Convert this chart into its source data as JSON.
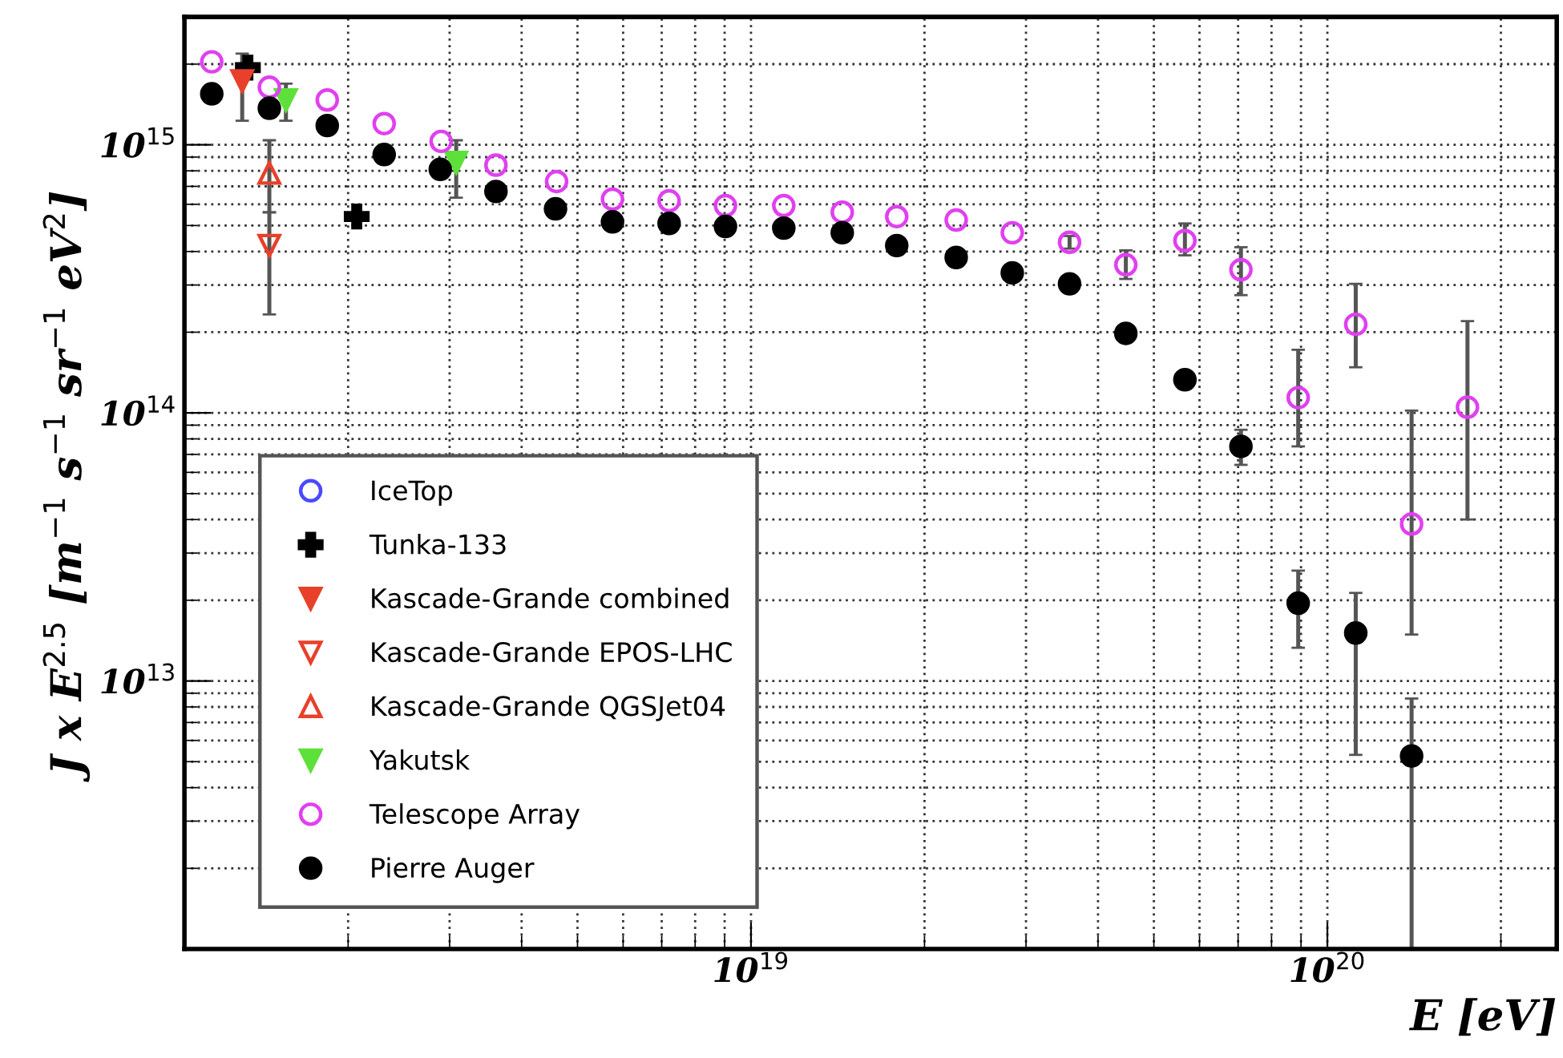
{
  "chart_data": {
    "type": "scatter",
    "xlabel": "E [eV]",
    "ylabel": "J x E$^{2.5}$ [m$^{−1}$ s$^{−1}$ sr$^{−1}$ eV$^{2}$]",
    "log": "xy",
    "xlim": [
      1.04e+18,
      2.5e+20
    ],
    "ylim": [
      1000000000000.0,
      3000000000000000.0
    ],
    "xticks": [
      {
        "value": 1e+19,
        "label": "10$^{19}$"
      },
      {
        "value": 1e+20,
        "label": "10$^{20}$"
      }
    ],
    "yticks": [
      {
        "value": 10000000000000.0,
        "label": "10$^{13}$"
      },
      {
        "value": 100000000000000.0,
        "label": "10$^{14}$"
      },
      {
        "value": 1000000000000000.0,
        "label": "10$^{15}$"
      }
    ],
    "grid": true,
    "legend": "bottom left",
    "series": [
      {
        "name": "IceTop",
        "color": "#4a4aff",
        "marker": "circle_open"
      },
      {
        "name": "Tunka-133",
        "color": "#000000",
        "marker": "cross",
        "x": [
          1.34e+18,
          2.07e+18
        ],
        "values": [
          1940000000000000.0,
          540000000000000.0
        ]
      },
      {
        "name": "Kascade-Grande combined",
        "color": "#e8402a",
        "marker": "triangle_down",
        "x": [
          1.31e+18
        ],
        "values": [
          1730000000000000.0
        ],
        "errors": [
          [
            1230000000000000.0,
            2190000000000000.0
          ]
        ]
      },
      {
        "name": "Kascade-Grande EPOS-LHC",
        "color": "#e8402a",
        "marker": "triangle_down_open",
        "x": [
          1.46e+18
        ],
        "values": [
          421000000000000.0
        ],
        "errors": [
          [
            233000000000000.0,
            560000000000000.0
          ]
        ]
      },
      {
        "name": "Kascade-Grande QGSJet04",
        "color": "#e8402a",
        "marker": "triangle_open",
        "x": [
          1.46e+18
        ],
        "values": [
          785000000000000.0
        ],
        "errors": [
          [
            560000000000000.0,
            1040000000000000.0
          ]
        ]
      },
      {
        "name": "Yakutsk",
        "color": "#5ee03a",
        "marker": "triangle_down",
        "x": [
          1.56e+18,
          3.08e+18
        ],
        "values": [
          1470000000000000.0,
          860000000000000.0
        ],
        "errors": [
          [
            1230000000000000.0,
            1690000000000000.0
          ],
          [
            635000000000000.0,
            1040000000000000.0
          ]
        ]
      },
      {
        "name": "Telescope Array",
        "color": "#e040f0",
        "marker": "circle_open",
        "x": [
          1.16e+18,
          1.46e+18,
          1.84e+18,
          2.31e+18,
          2.9e+18,
          3.61e+18,
          4.6e+18,
          5.75e+18,
          7.21e+18,
          9.03e+18,
          1.14e+19,
          1.44e+19,
          1.79e+19,
          2.27e+19,
          2.84e+19,
          3.57e+19,
          4.47e+19,
          5.66e+19,
          7.08e+19,
          8.9e+19,
          1.12e+20,
          1.4e+20,
          1.75e+20
        ],
        "values": [
          2040000000000000.0,
          1640000000000000.0,
          1470000000000000.0,
          1200000000000000.0,
          1030000000000000.0,
          840000000000000.0,
          730000000000000.0,
          627000000000000.0,
          618000000000000.0,
          593000000000000.0,
          593000000000000.0,
          561000000000000.0,
          540000000000000.0,
          524000000000000.0,
          470000000000000.0,
          433000000000000.0,
          357000000000000.0,
          439000000000000.0,
          342000000000000.0,
          114000000000000.0,
          214000000000000.0,
          38500000000000.0,
          105000000000000.0
        ],
        "errors": [
          null,
          null,
          null,
          null,
          null,
          null,
          null,
          null,
          null,
          null,
          null,
          null,
          null,
          null,
          null,
          [
            410000000000000.0,
            457000000000000.0
          ],
          [
            316000000000000.0,
            404000000000000.0
          ],
          [
            387000000000000.0,
            509000000000000.0
          ],
          [
            275000000000000.0,
            415000000000000.0
          ],
          [
            75000000000000.0,
            172000000000000.0
          ],
          [
            148000000000000.0,
            303000000000000.0
          ],
          [
            14900000000000.0,
            102000000000000.0
          ],
          [
            40000000000000.0,
            220000000000000.0
          ]
        ]
      },
      {
        "name": "Pierre Auger",
        "color": "#000000",
        "marker": "circle",
        "x": [
          1.16e+18,
          1.46e+18,
          1.84e+18,
          2.31e+18,
          2.89e+18,
          3.61e+18,
          4.58e+18,
          5.75e+18,
          7.21e+18,
          9.03e+18,
          1.14e+19,
          1.44e+19,
          1.79e+19,
          2.27e+19,
          2.84e+19,
          3.57e+19,
          4.47e+19,
          5.66e+19,
          7.08e+19,
          8.9e+19,
          1.12e+20,
          1.4e+20
        ],
        "values": [
          1550000000000000.0,
          1370000000000000.0,
          1180000000000000.0,
          920000000000000.0,
          810000000000000.0,
          670000000000000.0,
          577000000000000.0,
          516000000000000.0,
          509000000000000.0,
          496000000000000.0,
          489000000000000.0,
          470000000000000.0,
          421000000000000.0,
          380000000000000.0,
          333000000000000.0,
          303000000000000.0,
          198000000000000.0,
          133000000000000.0,
          75000000000000.0,
          19500000000000.0,
          15100000000000.0,
          5250000000000.0
        ],
        "errors": [
          null,
          null,
          null,
          null,
          null,
          null,
          null,
          null,
          null,
          null,
          null,
          null,
          null,
          null,
          null,
          null,
          null,
          [
            124000000000000.0,
            142000000000000.0
          ],
          [
            64000000000000.0,
            86500000000000.0
          ],
          [
            13300000000000.0,
            25800000000000.0
          ],
          [
            5300000000000.0,
            21300000000000.0
          ],
          [
            1000000000000.0,
            8600000000000.0
          ]
        ]
      }
    ]
  }
}
